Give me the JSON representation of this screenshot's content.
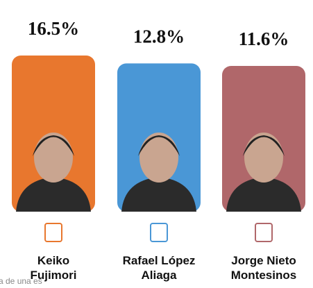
{
  "chart_data": {
    "type": "bar",
    "categories": [
      "Keiko Fujimori",
      "Rafael López Aliaga",
      "Jorge Nieto Montesinos"
    ],
    "values": [
      16.5,
      12.8,
      11.6
    ],
    "value_labels": [
      "16.5%",
      "12.8%",
      "11.6%"
    ],
    "colors": [
      "#e8772e",
      "#4a97d6",
      "#b0676a"
    ],
    "ylim": [
      -57,
      16.5
    ],
    "note": "a de una es"
  }
}
